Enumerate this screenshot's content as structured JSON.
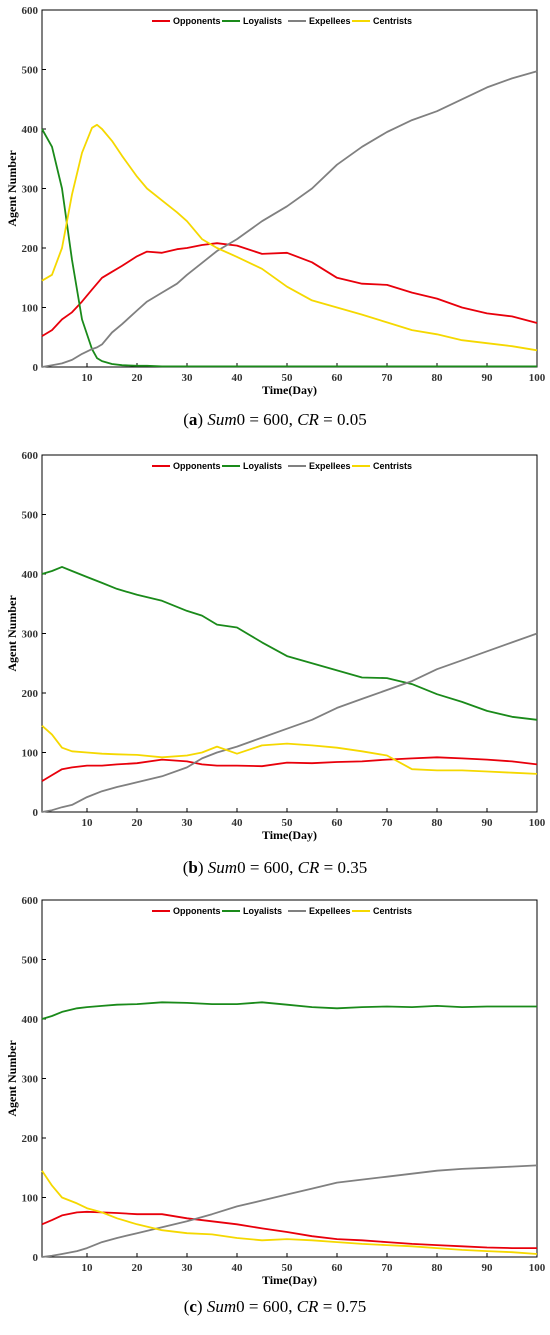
{
  "chart_data": [
    {
      "type": "line",
      "xlabel": "Time(Day)",
      "ylabel": "Agent Number",
      "xlim": [
        1,
        100
      ],
      "ylim": [
        0,
        600
      ],
      "xticks": [
        10,
        20,
        30,
        40,
        50,
        60,
        70,
        80,
        90,
        100
      ],
      "yticks": [
        0,
        100,
        200,
        300,
        400,
        500,
        600
      ],
      "grid": false,
      "legend": "top",
      "caption": {
        "letter": "a",
        "sum_label": "Sum",
        "sum_value": "0 = 600,",
        "cr_label": "CR",
        "cr_value": "= 0.05"
      },
      "x": [
        1,
        3,
        5,
        7,
        9,
        11,
        12,
        13,
        15,
        17,
        20,
        22,
        25,
        28,
        30,
        33,
        36,
        40,
        45,
        50,
        55,
        60,
        65,
        70,
        75,
        80,
        85,
        90,
        95,
        100
      ],
      "series": [
        {
          "name": "Opponents",
          "color": "#e8000b",
          "values": [
            52,
            62,
            80,
            92,
            110,
            130,
            140,
            150,
            160,
            170,
            186,
            194,
            192,
            198,
            200,
            205,
            208,
            204,
            190,
            192,
            176,
            150,
            140,
            138,
            125,
            115,
            100,
            90,
            85,
            74
          ]
        },
        {
          "name": "Loyalists",
          "color": "#1a8a1a",
          "values": [
            400,
            370,
            300,
            180,
            80,
            30,
            15,
            10,
            5,
            3,
            2,
            2,
            1,
            1,
            1,
            1,
            1,
            1,
            1,
            1,
            1,
            1,
            1,
            1,
            1,
            1,
            1,
            1,
            1,
            1
          ]
        },
        {
          "name": "Expellees",
          "color": "#808080",
          "values": [
            0,
            3,
            6,
            12,
            22,
            30,
            33,
            38,
            58,
            72,
            95,
            110,
            125,
            140,
            155,
            175,
            195,
            215,
            245,
            270,
            300,
            340,
            370,
            395,
            415,
            430,
            450,
            470,
            485,
            497
          ]
        },
        {
          "name": "Centrists",
          "color": "#f5d800",
          "values": [
            145,
            155,
            200,
            290,
            360,
            402,
            407,
            400,
            380,
            355,
            320,
            300,
            280,
            260,
            245,
            215,
            200,
            185,
            165,
            135,
            112,
            100,
            88,
            75,
            62,
            55,
            45,
            40,
            35,
            28
          ]
        }
      ]
    },
    {
      "type": "line",
      "xlabel": "Time(Day)",
      "ylabel": "Agent Number",
      "xlim": [
        1,
        100
      ],
      "ylim": [
        0,
        600
      ],
      "xticks": [
        10,
        20,
        30,
        40,
        50,
        60,
        70,
        80,
        90,
        100
      ],
      "yticks": [
        0,
        100,
        200,
        300,
        400,
        500,
        600
      ],
      "grid": false,
      "legend": "top",
      "caption": {
        "letter": "b",
        "sum_label": "Sum",
        "sum_value": "0 = 600,",
        "cr_label": "CR",
        "cr_value": "= 0.35"
      },
      "x": [
        1,
        3,
        5,
        7,
        10,
        13,
        16,
        20,
        25,
        30,
        33,
        36,
        40,
        45,
        50,
        55,
        60,
        65,
        70,
        75,
        80,
        85,
        90,
        95,
        100
      ],
      "series": [
        {
          "name": "Opponents",
          "color": "#e8000b",
          "values": [
            52,
            62,
            72,
            75,
            78,
            78,
            80,
            82,
            88,
            85,
            80,
            78,
            78,
            77,
            83,
            82,
            84,
            85,
            88,
            90,
            92,
            90,
            88,
            85,
            80
          ]
        },
        {
          "name": "Loyalists",
          "color": "#1a8a1a",
          "values": [
            400,
            405,
            412,
            405,
            395,
            385,
            375,
            365,
            355,
            338,
            330,
            315,
            310,
            285,
            262,
            250,
            238,
            226,
            225,
            215,
            198,
            185,
            170,
            160,
            155
          ]
        },
        {
          "name": "Expellees",
          "color": "#808080",
          "values": [
            0,
            3,
            8,
            12,
            25,
            35,
            42,
            50,
            60,
            75,
            90,
            100,
            110,
            125,
            140,
            155,
            175,
            190,
            205,
            220,
            240,
            255,
            270,
            285,
            300
          ]
        },
        {
          "name": "Centrists",
          "color": "#f5d800",
          "values": [
            145,
            130,
            108,
            102,
            100,
            98,
            97,
            96,
            92,
            95,
            100,
            110,
            98,
            112,
            115,
            112,
            108,
            102,
            95,
            72,
            70,
            70,
            68,
            66,
            64
          ]
        }
      ]
    },
    {
      "type": "line",
      "xlabel": "Time(Day)",
      "ylabel": "Agent Number",
      "xlim": [
        1,
        100
      ],
      "ylim": [
        0,
        600
      ],
      "xticks": [
        10,
        20,
        30,
        40,
        50,
        60,
        70,
        80,
        90,
        100
      ],
      "yticks": [
        0,
        100,
        200,
        300,
        400,
        500,
        600
      ],
      "grid": false,
      "legend": "top",
      "caption": {
        "letter": "c",
        "sum_label": "Sum",
        "sum_value": "0 = 600,",
        "cr_label": "CR",
        "cr_value": "= 0.75"
      },
      "x": [
        1,
        3,
        5,
        8,
        10,
        13,
        16,
        20,
        25,
        30,
        35,
        40,
        45,
        50,
        55,
        60,
        65,
        70,
        75,
        80,
        85,
        90,
        95,
        100
      ],
      "series": [
        {
          "name": "Opponents",
          "color": "#e8000b",
          "values": [
            55,
            62,
            70,
            75,
            76,
            75,
            74,
            72,
            72,
            65,
            60,
            55,
            48,
            42,
            35,
            30,
            28,
            25,
            22,
            20,
            18,
            16,
            15,
            15
          ]
        },
        {
          "name": "Loyalists",
          "color": "#1a8a1a",
          "values": [
            400,
            405,
            412,
            418,
            420,
            422,
            424,
            425,
            428,
            427,
            425,
            425,
            428,
            424,
            420,
            418,
            420,
            421,
            420,
            422,
            420,
            421,
            421,
            421
          ]
        },
        {
          "name": "Expellees",
          "color": "#808080",
          "values": [
            0,
            2,
            5,
            10,
            15,
            25,
            32,
            40,
            50,
            60,
            72,
            85,
            95,
            105,
            115,
            125,
            130,
            135,
            140,
            145,
            148,
            150,
            152,
            154
          ]
        },
        {
          "name": "Centrists",
          "color": "#f5d800",
          "values": [
            145,
            120,
            100,
            90,
            82,
            75,
            65,
            55,
            45,
            40,
            38,
            32,
            28,
            30,
            28,
            25,
            22,
            20,
            18,
            15,
            12,
            10,
            8,
            5
          ]
        }
      ]
    }
  ]
}
